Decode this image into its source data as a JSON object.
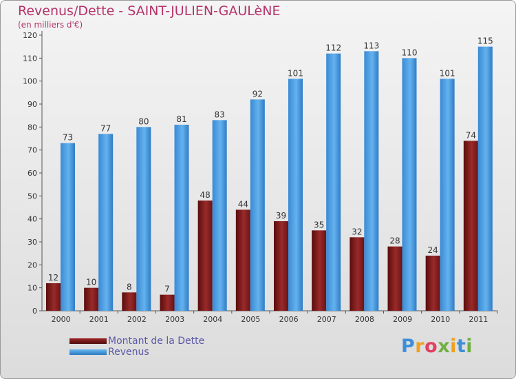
{
  "chart_data": {
    "type": "bar",
    "title": "Revenus/Dette - SAINT-JULIEN-GAULèNE",
    "subtitle": "(en milliers d'€)",
    "xlabel": "",
    "ylabel": "",
    "ylim": [
      0,
      120
    ],
    "yticks": [
      0,
      10,
      20,
      30,
      40,
      50,
      60,
      70,
      80,
      90,
      100,
      110,
      120
    ],
    "grid": false,
    "legend_position": "bottom-left",
    "categories": [
      "2000",
      "2001",
      "2002",
      "2003",
      "2004",
      "2005",
      "2006",
      "2007",
      "2008",
      "2009",
      "2010",
      "2011"
    ],
    "series": [
      {
        "name": "Montant de la Dette",
        "color": "#7a1a1a",
        "values": [
          12,
          10,
          8,
          7,
          48,
          44,
          39,
          35,
          32,
          28,
          24,
          74
        ]
      },
      {
        "name": "Revenus",
        "color": "#4a9fe0",
        "values": [
          73,
          77,
          80,
          81,
          83,
          92,
          101,
          112,
          113,
          110,
          101,
          115
        ]
      }
    ]
  },
  "brand": {
    "logo_letters": [
      "P",
      "r",
      "o",
      "x",
      "i",
      "t",
      "i"
    ],
    "logo_colors": [
      "#3c8fd8",
      "#f0a020",
      "#e04060",
      "#70b040",
      "#f0a020",
      "#3c8fd8",
      "#70b040"
    ]
  }
}
